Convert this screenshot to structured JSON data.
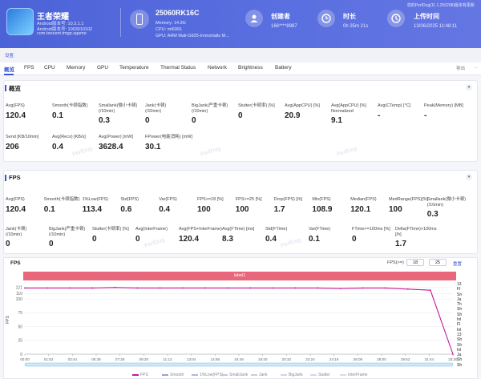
{
  "header": {
    "app_name": "王者荣耀",
    "android_version": "Android版本号: 10.3.1.1",
    "android_build": "Android版本号: 1003010102",
    "package": "com.tencent.tmgp.sgame",
    "device_name": "25060RK16C",
    "memory": "Memory: 14.9G",
    "cpu": "CPU: mt6991",
    "gpu": "GPU: ARM Mali-G925-Immortalis M...",
    "creator_label": "创建者",
    "creator_value": "166****8987",
    "duration_label": "时长",
    "duration_value": "0h 35m 21s",
    "upload_label": "上传时间",
    "upload_value": "13/06/2025 11:48:11",
    "top_right": "您的PerfDog(11.1.250208)版本有更新",
    "colors": {
      "accent": "#3a56d4",
      "header": "#4c63d8",
      "label_bar": "#e8677b",
      "fps_line": "#c2189b"
    }
  },
  "settings": "设置",
  "tabs": [
    "概览",
    "FPS",
    "CPU",
    "Memory",
    "GPU",
    "Temperature",
    "Thermal Status",
    "Network",
    "Brightness",
    "Battery"
  ],
  "tab_right": [
    "导出",
    "..."
  ],
  "overview": {
    "title": "概览",
    "collapse": "▾",
    "row1": [
      {
        "label": "Avg(FPS)",
        "value": "120.4"
      },
      {
        "label": "Smooth(卡顿指数)",
        "value": "0.1"
      },
      {
        "label": "Smallank(微小卡顿)\n(/10min)",
        "value": "0.3"
      },
      {
        "label": "Jank(卡顿)\n(/10min)",
        "value": "0"
      },
      {
        "label": "BigJank(严重卡顿)\n(/10min)",
        "value": "0"
      },
      {
        "label": "Stutter(卡顿率) [%]",
        "value": "0"
      },
      {
        "label": "Avg(AppCPU) [%]",
        "value": "20.9"
      },
      {
        "label": "Avg(AppCPU) [%]\nNormalized",
        "value": "9.1"
      },
      {
        "label": "Avg(CTemp) [°C]",
        "value": "-"
      },
      {
        "label": "Peak(Memory) [MB]",
        "value": "-"
      }
    ],
    "row2": [
      {
        "label": "Send [KB/10min]",
        "value": "206"
      },
      {
        "label": "Avg(Recv) [KB/s]",
        "value": "0.4"
      },
      {
        "label": "Avg(Power) [mW]",
        "value": "3628.4"
      },
      {
        "label": "FPower(电能消耗) [mW]",
        "value": "30.1"
      }
    ]
  },
  "fps_section": {
    "title": "FPS",
    "collapse": "▾",
    "row1": [
      {
        "label": "Avg(FPS)",
        "value": "120.4"
      },
      {
        "label": "Smooth(卡顿指数)",
        "value": "0.1"
      },
      {
        "label": "1%Low(FPS)",
        "value": "113.4"
      },
      {
        "label": "Std(FPS)",
        "value": "0.6"
      },
      {
        "label": "Var(FPS)",
        "value": "0.4"
      },
      {
        "label": "FPS>=18 [%]",
        "value": "100"
      },
      {
        "label": "FPS>=25 [%]",
        "value": "100"
      },
      {
        "label": "Drop(FPS) [/h]",
        "value": "1.7"
      },
      {
        "label": "Min(FPS)",
        "value": "108.9"
      },
      {
        "label": "Median(FPS)",
        "value": "120.1"
      },
      {
        "label": "MedRange(FPS)[%]",
        "value": "100"
      },
      {
        "label": "Smallank(微小卡顿)\n(/10min)",
        "value": "0.3"
      }
    ],
    "row2": [
      {
        "label": "Jank(卡顿)\n(/10min)",
        "value": "0"
      },
      {
        "label": "BigJank(严重卡顿)\n(/10min)",
        "value": "0"
      },
      {
        "label": "Stutter(卡顿率) [%]",
        "value": "0"
      },
      {
        "label": "Avg(InterFrame)",
        "value": "0"
      },
      {
        "label": "Avg(FPS+InterFrame)",
        "value": "120.4"
      },
      {
        "label": "Avg(FTime) [ms]",
        "value": "8.3"
      },
      {
        "label": "Std(FTime)",
        "value": "0.4"
      },
      {
        "label": "Var(FTime)",
        "value": "0.1"
      },
      {
        "label": "FTime>=100ms [%]",
        "value": "0"
      },
      {
        "label": "Delta(FTime)>100ms [/h]",
        "value": "1.7"
      }
    ]
  },
  "chart": {
    "title": "FPS",
    "fps_label": "FPS(>=)",
    "fps_min": "18",
    "fps_max": "25",
    "reset": "重置",
    "label_bar": "label1",
    "watermark": "PerfDog",
    "side_list": [
      "13",
      "FI",
      "Sn",
      "Ja",
      "Th",
      "Sh",
      "Sh",
      "Inl",
      "FI",
      "Inl",
      "13",
      "Sh",
      "Sh",
      "Inl",
      "Ja",
      "Sh",
      "Sh"
    ],
    "legend": [
      {
        "name": "FPS",
        "color": "#c2189b"
      },
      {
        "name": "Smooth",
        "color": "#9aa2c8"
      },
      {
        "name": "1%Low(FPS)",
        "color": "#b0b8d8"
      },
      {
        "name": "SmallJank",
        "color": "#c0c6dc"
      },
      {
        "name": "Jank",
        "color": "#c8cce0"
      },
      {
        "name": "BigJank",
        "color": "#d0d4e4"
      },
      {
        "name": "Stutter",
        "color": "#d4d8e6"
      },
      {
        "name": "InterFrame",
        "color": "#d8dce8"
      }
    ]
  },
  "chart_data": {
    "type": "line",
    "ylabel": "FPS",
    "ylim": [
      0,
      125
    ],
    "yticks": [
      "121",
      "110",
      "100",
      "75",
      "50",
      "25",
      "0"
    ],
    "xticks": [
      "00:00",
      "01:52",
      "03:44",
      "05:36",
      "07:28",
      "09:20",
      "11:12",
      "13:04",
      "14:56",
      "16:48",
      "18:40",
      "20:32",
      "22:24",
      "24:16",
      "26:08",
      "28:00",
      "29:52",
      "31:44",
      "33:36"
    ],
    "series": [
      {
        "name": "FPS",
        "values": [
          120,
          120,
          120,
          120,
          121,
          120,
          120,
          120,
          120,
          120,
          120,
          120,
          120,
          120,
          119,
          120,
          120,
          118,
          116,
          0
        ]
      }
    ]
  }
}
